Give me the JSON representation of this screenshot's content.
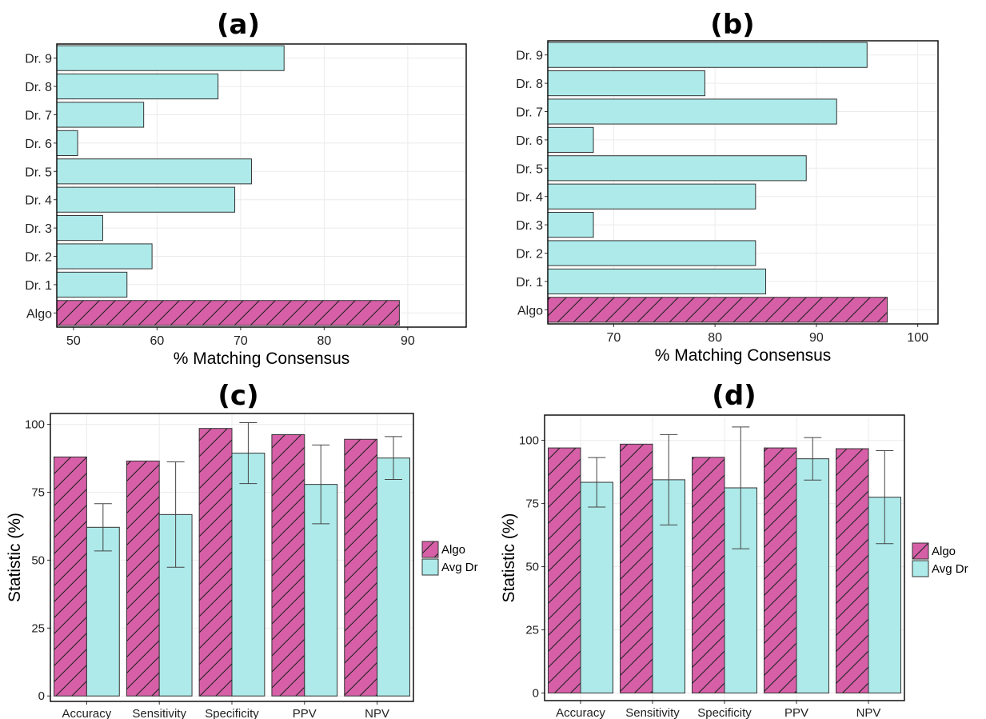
{
  "colors": {
    "algo_fill": "#d65fa7",
    "dr_fill": "#aeeaea",
    "bar_stroke": "#333333",
    "grid": "#ebebeb",
    "panel_border": "#000000"
  },
  "chart_data": [
    {
      "id": "a",
      "title": "(a)",
      "type": "bar",
      "orientation": "horizontal",
      "categories": [
        "Algo",
        "Dr. 1",
        "Dr. 2",
        "Dr. 3",
        "Dr. 4",
        "Dr. 5",
        "Dr. 6",
        "Dr. 7",
        "Dr. 8",
        "Dr. 9"
      ],
      "values": [
        89,
        56.4,
        59.4,
        53.5,
        69.3,
        71.3,
        50.5,
        58.4,
        67.3,
        75.2
      ],
      "algo_category": "Algo",
      "xlabel": "% Matching Consensus",
      "ylabel": "",
      "xlim": [
        48,
        97
      ],
      "xticks": [
        50,
        60,
        70,
        80,
        90
      ],
      "grid": true,
      "legend": "none"
    },
    {
      "id": "b",
      "title": "(b)",
      "type": "bar",
      "orientation": "horizontal",
      "categories": [
        "Algo",
        "Dr. 1",
        "Dr. 2",
        "Dr. 3",
        "Dr. 4",
        "Dr. 5",
        "Dr. 6",
        "Dr. 7",
        "Dr. 8",
        "Dr. 9"
      ],
      "values": [
        97,
        85,
        84,
        68,
        84,
        89,
        68,
        92,
        79,
        95
      ],
      "algo_category": "Algo",
      "xlabel": "% Matching Consensus",
      "ylabel": "",
      "xlim": [
        63.5,
        102
      ],
      "xticks": [
        70,
        80,
        90,
        100
      ],
      "grid": true,
      "legend": "none"
    },
    {
      "id": "c",
      "title": "(c)",
      "type": "bar",
      "orientation": "vertical",
      "categories": [
        "Accuracy",
        "Sensitivity",
        "Specificity",
        "PPV",
        "NPV"
      ],
      "series": [
        {
          "name": "Algo",
          "values": [
            88,
            86.5,
            98.5,
            96.2,
            94.5
          ]
        },
        {
          "name": "Avg Dr",
          "values": [
            62.1,
            66.8,
            89.4,
            77.9,
            87.6
          ],
          "error": [
            8.7,
            19.4,
            11.2,
            14.5,
            7.9
          ]
        }
      ],
      "xlabel": "",
      "ylabel": "Statistic (%)",
      "ylim": [
        -2,
        104
      ],
      "yticks": [
        0,
        25,
        50,
        75,
        100
      ],
      "grid": true,
      "legend": "right"
    },
    {
      "id": "d",
      "title": "(d)",
      "type": "bar",
      "orientation": "vertical",
      "categories": [
        "Accuracy",
        "Sensitivity",
        "Specificity",
        "PPV",
        "NPV"
      ],
      "series": [
        {
          "name": "Algo",
          "values": [
            97,
            98.5,
            93.3,
            97,
            96.7
          ]
        },
        {
          "name": "Avg Dr",
          "values": [
            83.4,
            84.4,
            81.2,
            92.7,
            77.5
          ],
          "error": [
            9.8,
            17.9,
            24.1,
            8.4,
            18.4
          ]
        }
      ],
      "xlabel": "",
      "ylabel": "Statistic (%)",
      "ylim": [
        -3,
        110
      ],
      "yticks": [
        0,
        25,
        50,
        75,
        100
      ],
      "grid": true,
      "legend": "right"
    }
  ]
}
